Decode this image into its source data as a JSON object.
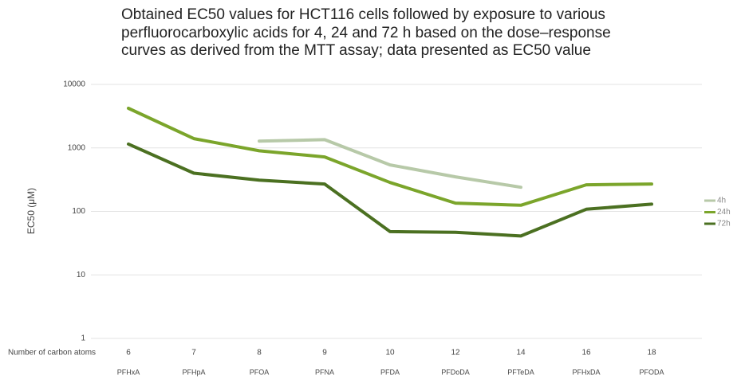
{
  "chart_data": {
    "type": "line",
    "title": "Obtained EC50 values for HCT116 cells followed by exposure to various perfluorocarboxylic acids for 4, 24 and 72 h based on the dose–response curves as derived from the MTT assay; data presented as EC50 value",
    "y_label": "EC50  (μM)",
    "x_row_label": "Number of carbon atoms",
    "carbon_atoms": [
      6,
      7,
      8,
      9,
      10,
      12,
      14,
      16,
      18
    ],
    "categories": [
      "PFHxA",
      "PFHpA",
      "PFOA",
      "PFNA",
      "PFDA",
      "PFDoDA",
      "PFTeDA",
      "PFHxDA",
      "PFODA"
    ],
    "series": [
      {
        "name": "4h",
        "color": "#b7c9a8",
        "values": [
          null,
          null,
          1280,
          1350,
          540,
          350,
          240,
          null,
          null
        ]
      },
      {
        "name": "24h",
        "color": "#7ba52b",
        "values": [
          4200,
          1400,
          900,
          720,
          285,
          135,
          125,
          262,
          270
        ]
      },
      {
        "name": "72h",
        "color": "#4b7021",
        "values": [
          1150,
          400,
          310,
          270,
          48,
          47,
          41,
          108,
          130
        ]
      }
    ],
    "ylim": [
      1,
      10000
    ],
    "yticks": [
      1,
      10,
      100,
      1000,
      10000
    ],
    "log_y": true,
    "grid": true,
    "legend": "right"
  }
}
